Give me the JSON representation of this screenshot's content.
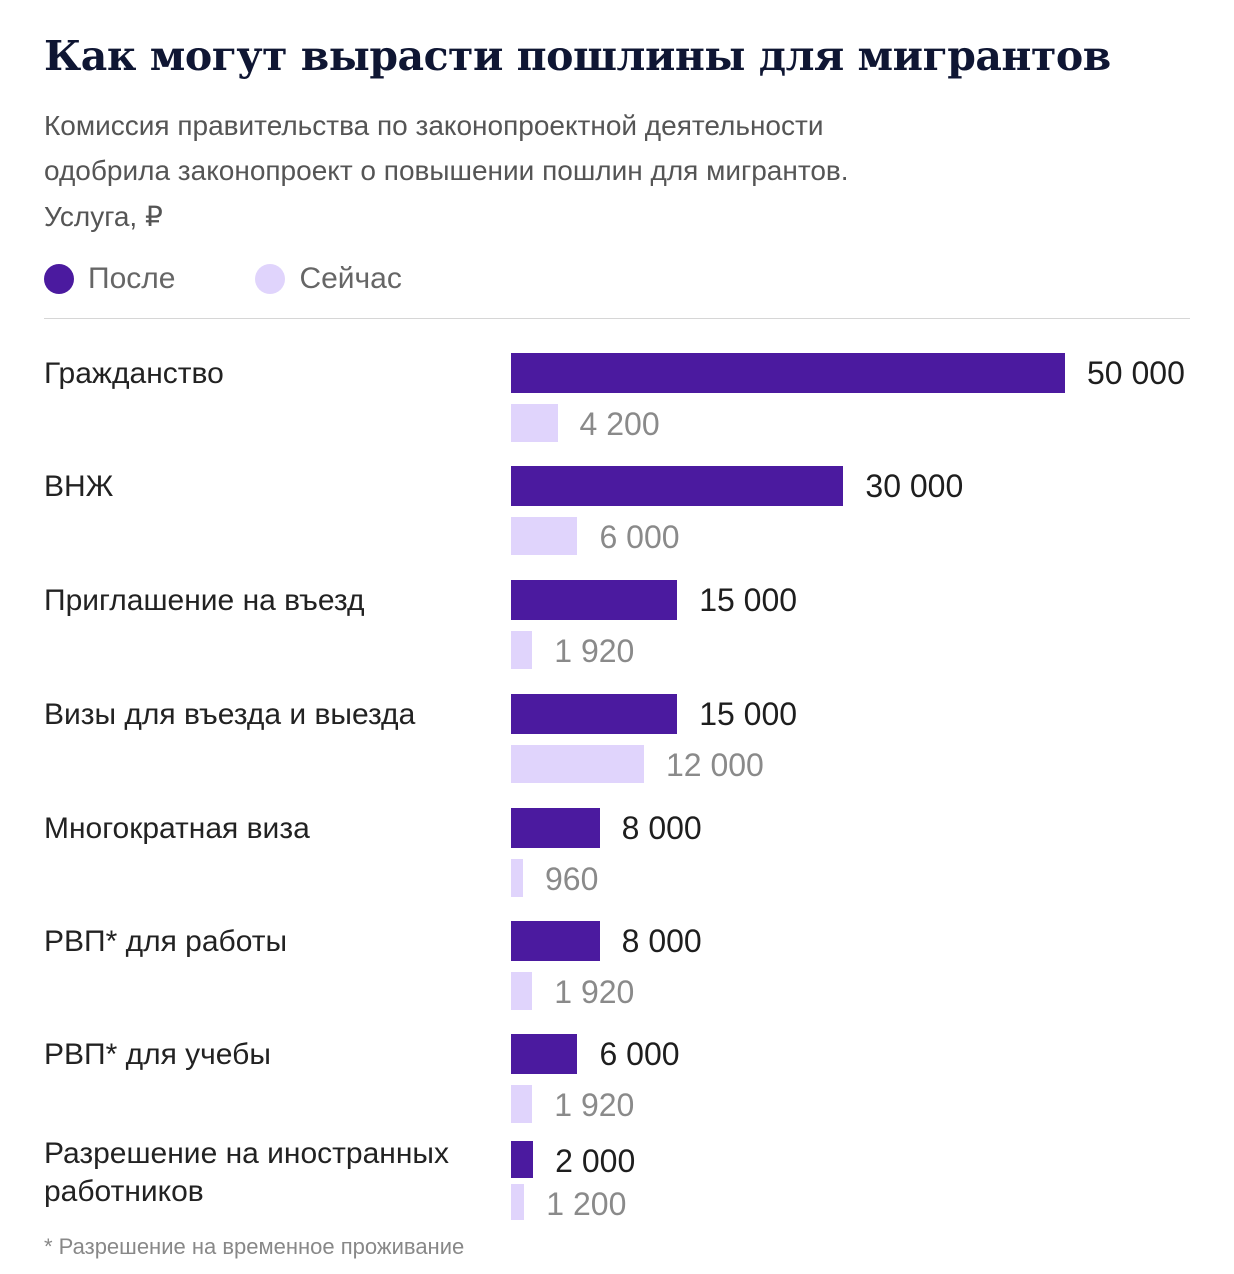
{
  "title": "Как могут вырасти пошлины для мигрантов",
  "subtitle_line1": "Комиссия правительства по законопроектной деятельности",
  "subtitle_line2": "одобрила законопроект о повышении пошлин для мигрантов.",
  "unit_label": "Услуга, ₽",
  "footnote": "* Разрешение на временное проживание",
  "colors": {
    "after": "#4b1a9f",
    "now": "#e0d4fc"
  },
  "chart_data": {
    "type": "bar",
    "orientation": "horizontal",
    "categories": [
      "Гражданство",
      "ВНЖ",
      "Приглашение на въезд",
      "Визы для въезда и выезда",
      "Многократная виза",
      "РВП* для работы",
      "РВП* для учебы",
      "Разрешение на иностранных работников"
    ],
    "series": [
      {
        "name": "После",
        "values": [
          50000,
          30000,
          15000,
          15000,
          8000,
          8000,
          6000,
          2000
        ],
        "labels": [
          "50 000",
          "30 000",
          "15 000",
          "15 000",
          "8 000",
          "8 000",
          "6 000",
          "2 000"
        ]
      },
      {
        "name": "Сейчас",
        "values": [
          4200,
          6000,
          1920,
          12000,
          960,
          1920,
          1920,
          1200
        ],
        "labels": [
          "4 200",
          "6 000",
          "1 920",
          "12 000",
          "960",
          "1 920",
          "1 920",
          "1 200"
        ]
      }
    ],
    "xlim": [
      0,
      50000
    ],
    "grid": false,
    "legend": "top-left"
  }
}
